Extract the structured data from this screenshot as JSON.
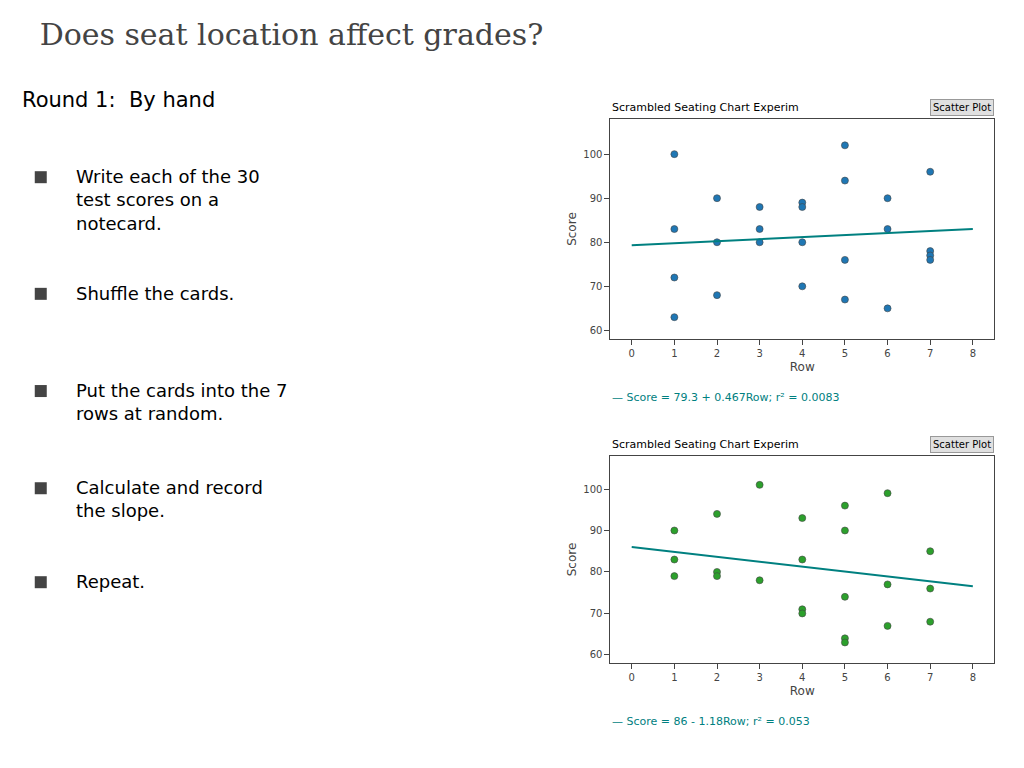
{
  "title": "Does seat location affect grades?",
  "subtitle": "Round 1:  By hand",
  "annotations": [
    "Write each of the 30\ntest scores on a\nnotecard.",
    "Shuffle the cards.",
    "Put the cards into the 7\nrows at random.",
    "Calculate and record\nthe slope.",
    "Repeat."
  ],
  "chart_data": [
    {
      "type": "scatter",
      "title": "Scrambled Seating Chart Experim",
      "xlabel": "Row",
      "ylabel": "Score",
      "annotations": [
        "Scatter Plot",
        "— Score = 79.3 + 0.467Row; r² = 0.0083"
      ],
      "series": [
        {
          "type": "scatter",
          "x": [
            1,
            1,
            1,
            1,
            2,
            2,
            2,
            3,
            3,
            3,
            4,
            4,
            4,
            4,
            5,
            5,
            5,
            5,
            6,
            6,
            6,
            7,
            7,
            7,
            7
          ],
          "values": [
            100,
            83,
            72,
            63,
            90,
            80,
            68,
            88,
            83,
            80,
            89,
            88,
            80,
            70,
            102,
            94,
            76,
            67,
            90,
            83,
            65,
            96,
            78,
            77,
            76
          ]
        },
        {
          "type": "line",
          "color": "#008080",
          "x": [
            0,
            8
          ],
          "values": [
            79.3,
            83.036
          ]
        }
      ],
      "xlim": [
        -0.5,
        8.5
      ],
      "xticks": [
        0,
        1,
        2,
        3,
        4,
        5,
        6,
        7,
        8
      ],
      "ylim": [
        58,
        108
      ],
      "yticks": [
        60,
        70,
        80,
        90,
        100
      ],
      "grid": false
    },
    {
      "type": "scatter",
      "title": "Scrambled Seating Chart Experim",
      "xlabel": "Row",
      "ylabel": "Score",
      "annotations": [
        "Scatter Plot",
        "— Score = 86 - 1.18Row; r² = 0.053"
      ],
      "series": [
        {
          "type": "scatter",
          "x": [
            1,
            1,
            1,
            2,
            2,
            2,
            3,
            3,
            4,
            4,
            4,
            4,
            5,
            5,
            5,
            5,
            5,
            6,
            6,
            6,
            7,
            7,
            7
          ],
          "values": [
            90,
            83,
            79,
            94,
            80,
            79,
            101,
            78,
            93,
            83,
            71,
            70,
            96,
            90,
            74,
            64,
            63,
            99,
            77,
            67,
            85,
            76,
            68
          ]
        },
        {
          "type": "line",
          "color": "#008080",
          "x": [
            0,
            8
          ],
          "values": [
            86,
            76.56
          ]
        }
      ],
      "xlim": [
        -0.5,
        8.5
      ],
      "xticks": [
        0,
        1,
        2,
        3,
        4,
        5,
        6,
        7,
        8
      ],
      "ylim": [
        58,
        108
      ],
      "yticks": [
        60,
        70,
        80,
        90,
        100
      ],
      "grid": false
    }
  ]
}
